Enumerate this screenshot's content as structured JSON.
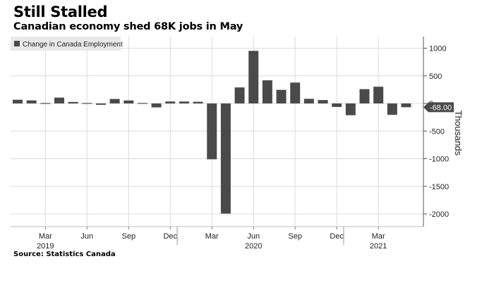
{
  "title": "Still Stalled",
  "subtitle": "Canadian economy shed 68K jobs in May",
  "source": "Source: Statistics Canada",
  "colors": {
    "bar": "#4a4a4a",
    "grid": "#dcdcdc",
    "legend_bg": "#e8e8e8",
    "label_bg": "#4a4a4a"
  },
  "chart_data": {
    "type": "bar",
    "title": "",
    "legend": [
      "Change in Canada Employment"
    ],
    "legend_position": "top-left",
    "ylabel": "Thousands",
    "y_axis_side": "right",
    "ylim": [
      -2200,
      1200
    ],
    "yticks": [
      1000,
      500,
      0,
      -500,
      -1000,
      -1500,
      -2000
    ],
    "grid": true,
    "last_value_label": "-68.00",
    "categories": [
      "2019-01",
      "2019-02",
      "2019-03",
      "2019-04",
      "2019-05",
      "2019-06",
      "2019-07",
      "2019-08",
      "2019-09",
      "2019-10",
      "2019-11",
      "2019-12",
      "2020-01",
      "2020-02",
      "2020-03",
      "2020-04",
      "2020-05",
      "2020-06",
      "2020-07",
      "2020-08",
      "2020-09",
      "2020-10",
      "2020-11",
      "2020-12",
      "2021-01",
      "2021-02",
      "2021-03",
      "2021-04",
      "2021-05"
    ],
    "series": [
      {
        "name": "Change in Canada Employment",
        "values": [
          67,
          55,
          -10,
          106,
          27,
          -2,
          -24,
          81,
          54,
          2,
          -71,
          35,
          35,
          30,
          -1011,
          -1994,
          290,
          952,
          419,
          246,
          378,
          84,
          62,
          -63,
          -213,
          259,
          303,
          -207,
          -68
        ]
      }
    ],
    "x_tick_labels": [
      {
        "month": "Mar",
        "year": "2019",
        "category": "2019-03"
      },
      {
        "month": "Jun",
        "year": "",
        "category": "2019-06"
      },
      {
        "month": "Sep",
        "year": "",
        "category": "2019-09"
      },
      {
        "month": "Dec",
        "year": "",
        "category": "2019-12"
      },
      {
        "month": "Mar",
        "year": "",
        "category": "2020-03"
      },
      {
        "month": "Jun",
        "year": "2020",
        "category": "2020-06"
      },
      {
        "month": "Sep",
        "year": "",
        "category": "2020-09"
      },
      {
        "month": "Dec",
        "year": "",
        "category": "2020-12"
      },
      {
        "month": "Mar",
        "year": "2021",
        "category": "2021-03"
      }
    ]
  }
}
